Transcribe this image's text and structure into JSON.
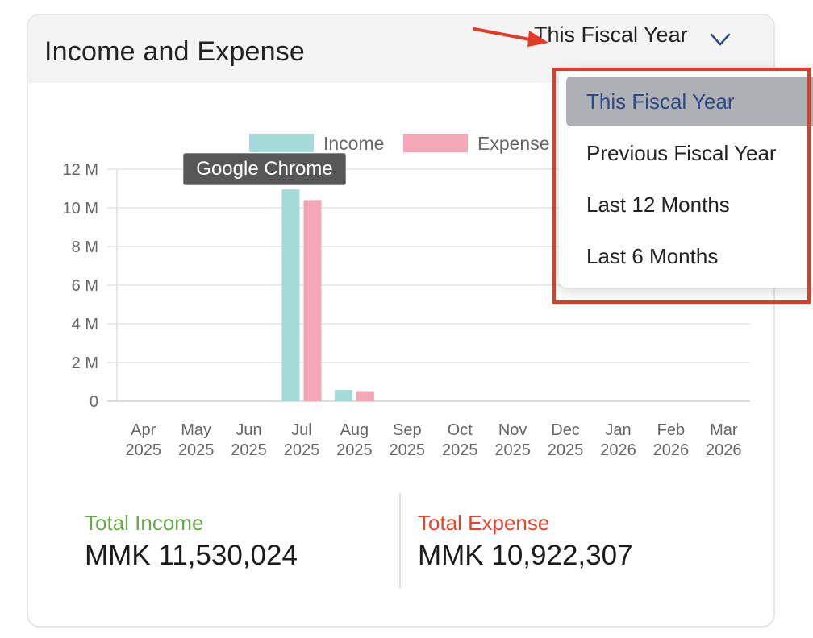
{
  "card": {
    "title": "Income and Expense",
    "filter_value": "This Fiscal Year"
  },
  "dropdown": {
    "options": [
      "This Fiscal Year",
      "Previous Fiscal Year",
      "Last 12 Months",
      "Last 6 Months"
    ],
    "selected_index": 0
  },
  "tooltip": {
    "text": "Google Chrome"
  },
  "totals": {
    "income_label": "Total Income",
    "income_value": "MMK 11,530,024",
    "expense_label": "Total Expense",
    "expense_value": "MMK 10,922,307"
  },
  "colors": {
    "income": "#a4dad8",
    "expense": "#f5a7b8",
    "income_label": "#6aa84f",
    "expense_label": "#e2442f",
    "annotation": "#e23a25"
  },
  "chart_data": {
    "type": "bar",
    "categories": [
      [
        "Apr",
        "2025"
      ],
      [
        "May",
        "2025"
      ],
      [
        "Jun",
        "2025"
      ],
      [
        "Jul",
        "2025"
      ],
      [
        "Aug",
        "2025"
      ],
      [
        "Sep",
        "2025"
      ],
      [
        "Oct",
        "2025"
      ],
      [
        "Nov",
        "2025"
      ],
      [
        "Dec",
        "2025"
      ],
      [
        "Jan",
        "2026"
      ],
      [
        "Feb",
        "2026"
      ],
      [
        "Mar",
        "2026"
      ]
    ],
    "series": [
      {
        "name": "Income",
        "color": "#a4dad8",
        "values": [
          0,
          0,
          0,
          10950000,
          580000,
          0,
          0,
          0,
          0,
          0,
          0,
          0
        ]
      },
      {
        "name": "Expense",
        "color": "#f5a7b8",
        "values": [
          0,
          0,
          0,
          10400000,
          520000,
          0,
          0,
          0,
          0,
          0,
          0,
          0
        ]
      }
    ],
    "yticks": [
      "0",
      "2 M",
      "4 M",
      "6 M",
      "8 M",
      "10 M",
      "12 M"
    ],
    "ylim": [
      0,
      12000000
    ],
    "legend_position": "top",
    "grid": true
  }
}
